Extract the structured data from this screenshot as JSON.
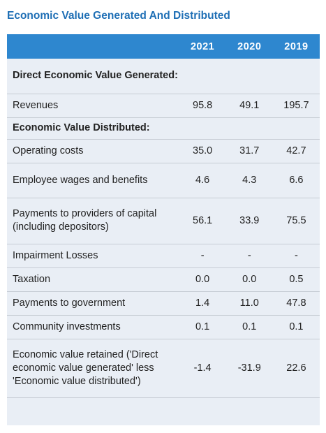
{
  "title": "Economic Value Generated And Distributed",
  "table": {
    "years": [
      "2021",
      "2020",
      "2019"
    ],
    "sections": {
      "generated": "Direct Economic Value Generated:",
      "distributed": "Economic Value Distributed:"
    },
    "rows": [
      {
        "label": "Revenues",
        "values": [
          "95.8",
          "49.1",
          "195.7"
        ]
      },
      {
        "label": "Operating costs",
        "values": [
          "35.0",
          "31.7",
          "42.7"
        ]
      },
      {
        "label": "Employee wages and benefits",
        "values": [
          "4.6",
          "4.3",
          "6.6"
        ]
      },
      {
        "label": "Payments to providers of capital (including depositors)",
        "values": [
          "56.1",
          "33.9",
          "75.5"
        ]
      },
      {
        "label": "Impairment Losses",
        "values": [
          "-",
          "-",
          "-"
        ]
      },
      {
        "label": "Taxation",
        "values": [
          "0.0",
          "0.0",
          "0.5"
        ]
      },
      {
        "label": "Payments to government",
        "values": [
          "1.4",
          "11.0",
          "47.8"
        ]
      },
      {
        "label": "Community investments",
        "values": [
          "0.1",
          "0.1",
          "0.1"
        ]
      },
      {
        "label": "Economic value retained ('Direct economic value generated' less 'Economic value distributed')",
        "values": [
          "-1.4",
          "-31.9",
          "22.6"
        ]
      }
    ]
  }
}
